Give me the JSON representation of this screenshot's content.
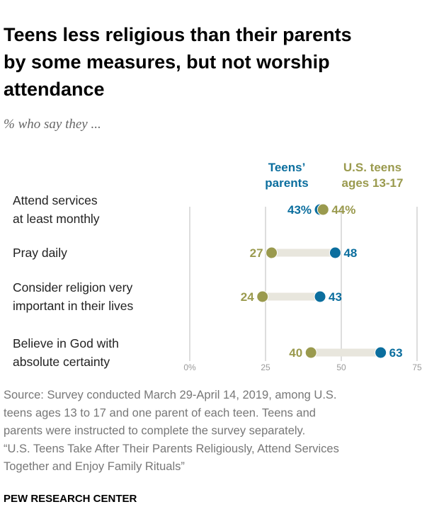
{
  "chart_data": {
    "type": "dot",
    "title": [
      "Teens less religious than their parents",
      "by some measures, but not worship",
      "attendance"
    ],
    "subtitle": "% who say they ...",
    "categories": [
      [
        "Attend services",
        "at least monthly"
      ],
      [
        "Pray daily"
      ],
      [
        "Consider religion very",
        "important in their lives"
      ],
      [
        "Believe in God with",
        "absolute certainty"
      ]
    ],
    "series": [
      {
        "name": "Teens’ parents",
        "color": "#0b6e9e",
        "values": [
          43,
          48,
          43,
          63
        ],
        "value_labels": [
          "43%",
          "48",
          "43",
          "63"
        ]
      },
      {
        "name": "U.S. teens ages 13-17",
        "color": "#9a9a4e",
        "values": [
          44,
          27,
          24,
          40
        ],
        "value_labels": [
          "44%",
          "27",
          "24",
          "40"
        ]
      }
    ],
    "xlim": [
      0,
      75
    ],
    "xticks": [
      {
        "value": 0,
        "label": "0%"
      },
      25,
      50,
      75
    ],
    "grid": true,
    "source": [
      "Source: Survey conducted March 29-April 14, 2019, among U.S.",
      "teens ages 13 to 17 and one parent of each teen. Teens and",
      "parents were instructed to complete the survey separately."
    ],
    "note": [
      "“U.S. Teens Take After Their Parents Religiously, Attend Services",
      "Together and Enjoy Family Rituals”"
    ],
    "credit": "PEW RESEARCH CENTER"
  }
}
